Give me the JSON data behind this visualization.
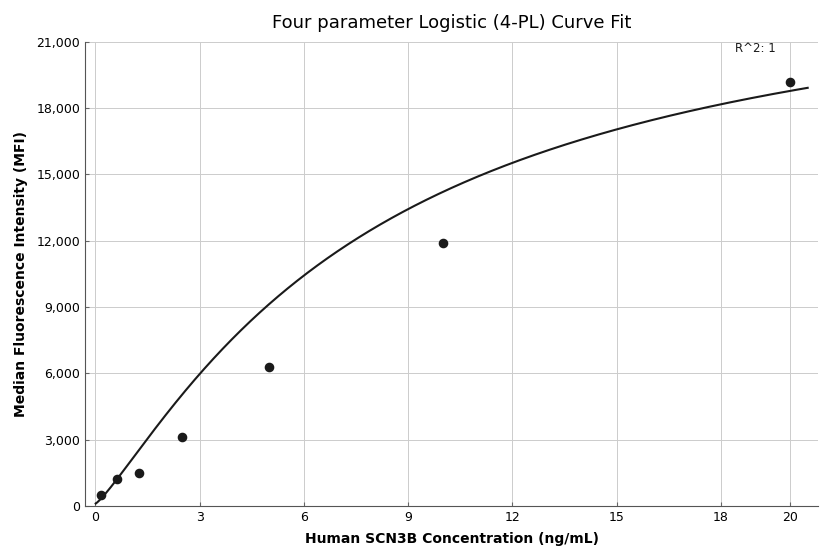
{
  "title": "Four parameter Logistic (4-PL) Curve Fit",
  "xlabel": "Human SCN3B Concentration (ng/mL)",
  "ylabel": "Median Fluorescence Intensity (MFI)",
  "data_x": [
    0.156,
    0.625,
    1.25,
    2.5,
    5.0,
    10.0,
    20.0
  ],
  "data_y": [
    500,
    1200,
    1500,
    3100,
    6300,
    11900,
    19200
  ],
  "xlim": [
    -0.3,
    20.8
  ],
  "ylim": [
    0,
    21000
  ],
  "xticks": [
    0,
    3,
    6,
    9,
    12,
    15,
    18,
    20
  ],
  "yticks": [
    0,
    3000,
    6000,
    9000,
    12000,
    15000,
    18000,
    21000
  ],
  "r_squared_text": "R^2: 1",
  "r_squared_x": 19.0,
  "r_squared_y": 20400,
  "line_color": "#1a1a1a",
  "marker_color": "#1a1a1a",
  "grid_color": "#cccccc",
  "background_color": "#ffffff",
  "title_fontsize": 13,
  "label_fontsize": 10,
  "tick_fontsize": 9,
  "annotation_fontsize": 8.5
}
